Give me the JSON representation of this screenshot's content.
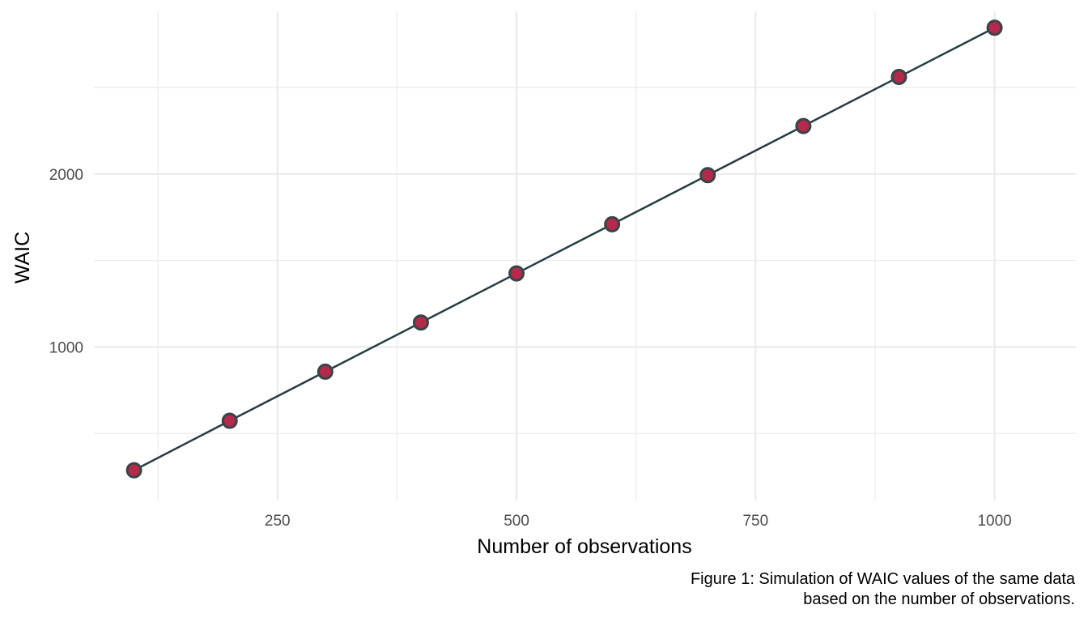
{
  "chart_data": {
    "type": "line",
    "xlabel": "Number of observations",
    "ylabel": "WAIC",
    "xlim": [
      58,
      1085
    ],
    "ylim": [
      112,
      2940
    ],
    "x_ticks": [
      250,
      500,
      750,
      1000
    ],
    "x_minor_ticks": [
      125,
      375,
      625,
      875
    ],
    "y_ticks": [
      1000,
      2000
    ],
    "y_minor_ticks": [
      500,
      1500,
      2500
    ],
    "grid": true,
    "series": [
      {
        "x": [
          100,
          200,
          300,
          400,
          500,
          600,
          700,
          800,
          900,
          1000
        ],
        "y": [
          287,
          573,
          857,
          1141,
          1425,
          1709,
          1993,
          2277,
          2561,
          2845
        ]
      }
    ],
    "line_color": "#263D42",
    "point_fill": "#B5294A",
    "point_stroke": "#3A4448"
  },
  "caption": {
    "line1": "Figure 1: Simulation of WAIC values of the same data",
    "line2": "based on the number of observations."
  }
}
